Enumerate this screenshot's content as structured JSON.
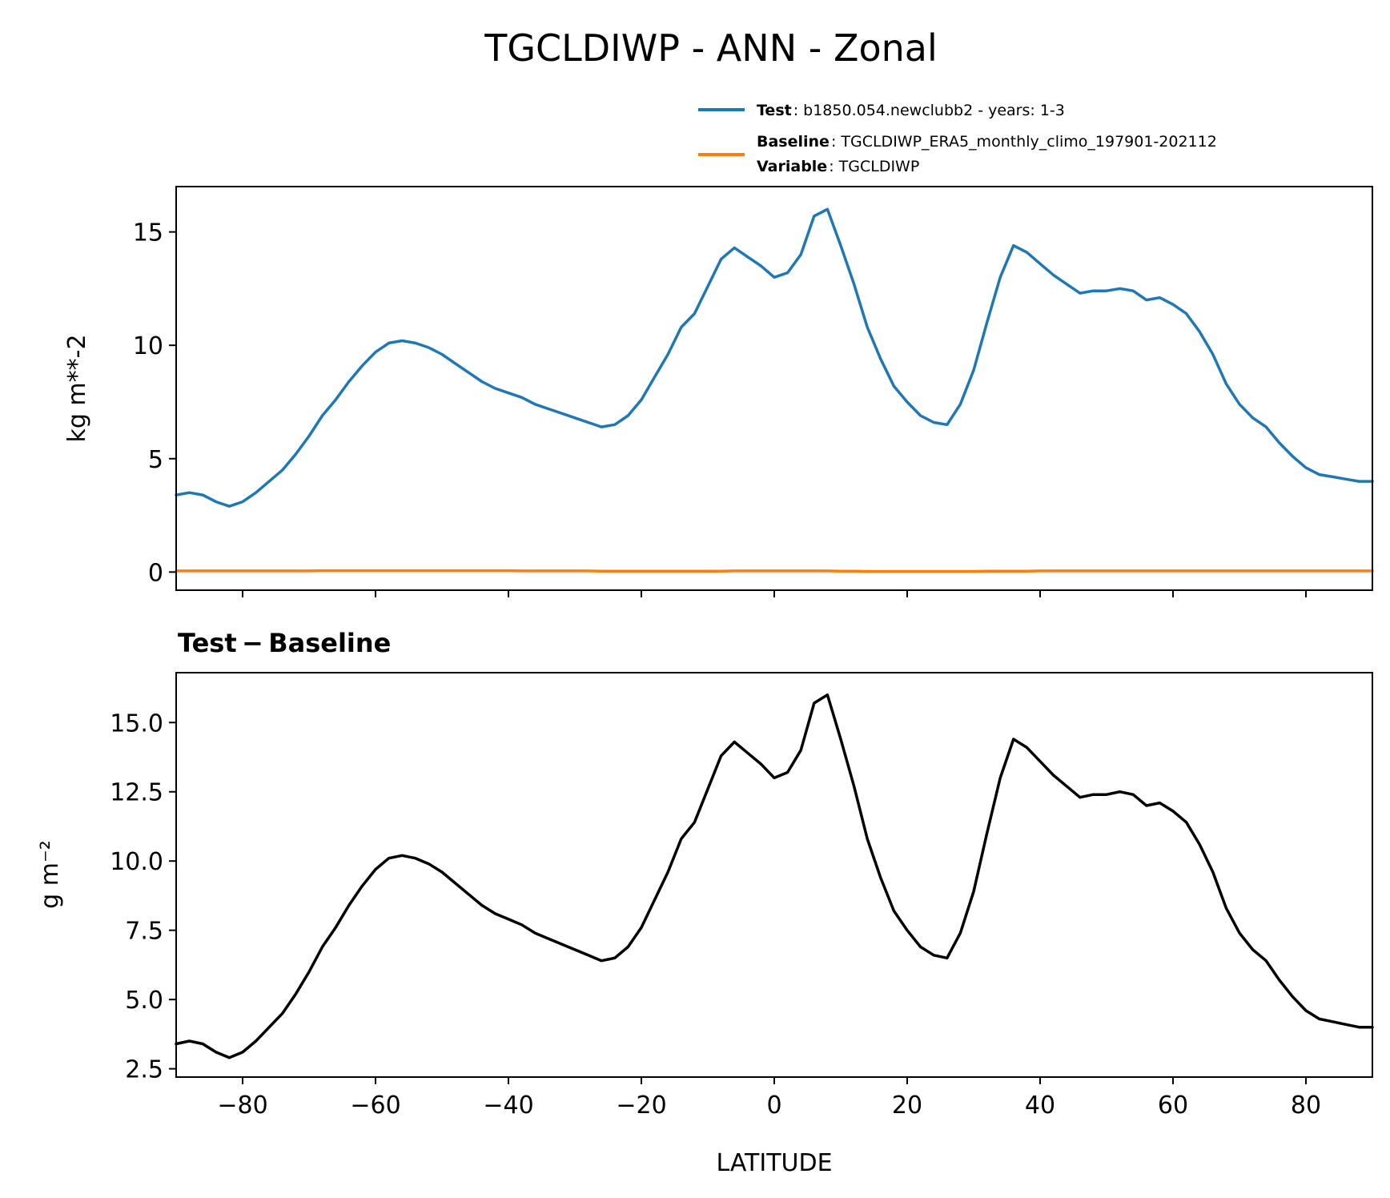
{
  "chart_data": [
    {
      "type": "line",
      "title": "TGCLDIWP - ANN - Zonal",
      "xlabel": "",
      "ylabel": "kg m**-2",
      "xlim": [
        -90,
        90
      ],
      "ylim": [
        -0.8,
        17.0
      ],
      "xticks": [
        -80,
        -60,
        -40,
        -20,
        0,
        20,
        40,
        60,
        80
      ],
      "yticks": [
        0,
        5,
        10,
        15
      ],
      "ytick_labels": [
        "0",
        "5",
        "10",
        "15"
      ],
      "legend": {
        "placement": "above-right",
        "entries": [
          {
            "series": "Test",
            "label_bold": "Test",
            "label_text": ": b1850.054.newclubb2 - years: 1-3",
            "color": "#1f77b4"
          },
          {
            "series": "Baseline",
            "label_bold": "Baseline",
            "label_text": ": TGCLDIWP_ERA5_monthly_climo_197901-202112",
            "color": "#ff7f0e",
            "extra_bold": "Variable",
            "extra_text": ": TGCLDIWP"
          }
        ]
      },
      "x": [
        -90,
        -88,
        -86,
        -84,
        -82,
        -80,
        -78,
        -76,
        -74,
        -72,
        -70,
        -68,
        -66,
        -64,
        -62,
        -60,
        -58,
        -56,
        -54,
        -52,
        -50,
        -48,
        -46,
        -44,
        -42,
        -40,
        -38,
        -36,
        -34,
        -32,
        -30,
        -28,
        -26,
        -24,
        -22,
        -20,
        -18,
        -16,
        -14,
        -12,
        -10,
        -8,
        -6,
        -4,
        -2,
        0,
        2,
        4,
        6,
        8,
        10,
        12,
        14,
        16,
        18,
        20,
        22,
        24,
        26,
        28,
        30,
        32,
        34,
        36,
        38,
        40,
        42,
        44,
        46,
        48,
        50,
        52,
        54,
        56,
        58,
        60,
        62,
        64,
        66,
        68,
        70,
        72,
        74,
        76,
        78,
        80,
        82,
        84,
        86,
        88,
        90
      ],
      "series": [
        {
          "name": "Test",
          "color": "#1f77b4",
          "values": [
            3.4,
            3.5,
            3.4,
            3.1,
            2.9,
            3.1,
            3.5,
            4.0,
            4.5,
            5.2,
            6.0,
            6.9,
            7.6,
            8.4,
            9.1,
            9.7,
            10.1,
            10.2,
            10.1,
            9.9,
            9.6,
            9.2,
            8.8,
            8.4,
            8.1,
            7.9,
            7.7,
            7.4,
            7.2,
            7.0,
            6.8,
            6.6,
            6.4,
            6.5,
            6.9,
            7.6,
            8.6,
            9.6,
            10.8,
            11.4,
            12.6,
            13.8,
            14.3,
            13.9,
            13.5,
            13.0,
            13.2,
            14.0,
            15.7,
            16.0,
            14.4,
            12.7,
            10.8,
            9.4,
            8.2,
            7.5,
            6.9,
            6.6,
            6.5,
            7.4,
            8.9,
            11.0,
            13.0,
            14.4,
            14.1,
            13.6,
            13.1,
            12.7,
            12.3,
            12.4,
            12.4,
            12.5,
            12.4,
            12.0,
            12.1,
            11.8,
            11.4,
            10.6,
            9.6,
            8.3,
            7.4,
            6.8,
            6.4,
            5.7,
            5.1,
            4.6,
            4.3,
            4.2,
            4.1,
            4.0,
            4.0
          ]
        },
        {
          "name": "Baseline",
          "color": "#ff7f0e",
          "values": [
            0.05,
            0.05,
            0.05,
            0.05,
            0.05,
            0.05,
            0.05,
            0.05,
            0.05,
            0.05,
            0.05,
            0.06,
            0.06,
            0.06,
            0.06,
            0.06,
            0.06,
            0.06,
            0.06,
            0.06,
            0.06,
            0.06,
            0.06,
            0.06,
            0.06,
            0.06,
            0.05,
            0.05,
            0.05,
            0.05,
            0.05,
            0.05,
            0.04,
            0.04,
            0.04,
            0.04,
            0.04,
            0.04,
            0.04,
            0.04,
            0.04,
            0.04,
            0.05,
            0.05,
            0.05,
            0.05,
            0.05,
            0.05,
            0.05,
            0.05,
            0.04,
            0.04,
            0.03,
            0.03,
            0.03,
            0.03,
            0.03,
            0.03,
            0.03,
            0.03,
            0.03,
            0.04,
            0.04,
            0.04,
            0.04,
            0.05,
            0.05,
            0.05,
            0.05,
            0.05,
            0.05,
            0.05,
            0.05,
            0.05,
            0.05,
            0.05,
            0.05,
            0.05,
            0.05,
            0.05,
            0.05,
            0.05,
            0.05,
            0.05,
            0.05,
            0.05,
            0.05,
            0.05,
            0.05,
            0.05,
            0.05
          ]
        }
      ]
    },
    {
      "type": "line",
      "title": "Test − Baseline",
      "xlabel": "LATITUDE",
      "ylabel": "g m⁻²",
      "xlim": [
        -90,
        90
      ],
      "ylim": [
        2.2,
        16.8
      ],
      "xticks": [
        -80,
        -60,
        -40,
        -20,
        0,
        20,
        40,
        60,
        80
      ],
      "xtick_labels": [
        "−80",
        "−60",
        "−40",
        "−20",
        "0",
        "20",
        "40",
        "60",
        "80"
      ],
      "yticks": [
        2.5,
        5.0,
        7.5,
        10.0,
        12.5,
        15.0
      ],
      "ytick_labels": [
        "2.5",
        "5.0",
        "7.5",
        "10.0",
        "12.5",
        "15.0"
      ],
      "x": [
        -90,
        -88,
        -86,
        -84,
        -82,
        -80,
        -78,
        -76,
        -74,
        -72,
        -70,
        -68,
        -66,
        -64,
        -62,
        -60,
        -58,
        -56,
        -54,
        -52,
        -50,
        -48,
        -46,
        -44,
        -42,
        -40,
        -38,
        -36,
        -34,
        -32,
        -30,
        -28,
        -26,
        -24,
        -22,
        -20,
        -18,
        -16,
        -14,
        -12,
        -10,
        -8,
        -6,
        -4,
        -2,
        0,
        2,
        4,
        6,
        8,
        10,
        12,
        14,
        16,
        18,
        20,
        22,
        24,
        26,
        28,
        30,
        32,
        34,
        36,
        38,
        40,
        42,
        44,
        46,
        48,
        50,
        52,
        54,
        56,
        58,
        60,
        62,
        64,
        66,
        68,
        70,
        72,
        74,
        76,
        78,
        80,
        82,
        84,
        86,
        88,
        90
      ],
      "series": [
        {
          "name": "Test - Baseline",
          "color": "#000000",
          "values": [
            3.4,
            3.5,
            3.4,
            3.1,
            2.9,
            3.1,
            3.5,
            4.0,
            4.5,
            5.2,
            6.0,
            6.9,
            7.6,
            8.4,
            9.1,
            9.7,
            10.1,
            10.2,
            10.1,
            9.9,
            9.6,
            9.2,
            8.8,
            8.4,
            8.1,
            7.9,
            7.7,
            7.4,
            7.2,
            7.0,
            6.8,
            6.6,
            6.4,
            6.5,
            6.9,
            7.6,
            8.6,
            9.6,
            10.8,
            11.4,
            12.6,
            13.8,
            14.3,
            13.9,
            13.5,
            13.0,
            13.2,
            14.0,
            15.7,
            16.0,
            14.4,
            12.7,
            10.8,
            9.4,
            8.2,
            7.5,
            6.9,
            6.6,
            6.5,
            7.4,
            8.9,
            11.0,
            13.0,
            14.4,
            14.1,
            13.6,
            13.1,
            12.7,
            12.3,
            12.4,
            12.4,
            12.5,
            12.4,
            12.0,
            12.1,
            11.8,
            11.4,
            10.6,
            9.6,
            8.3,
            7.4,
            6.8,
            6.4,
            5.7,
            5.1,
            4.6,
            4.3,
            4.2,
            4.1,
            4.0,
            4.0
          ]
        }
      ]
    }
  ]
}
